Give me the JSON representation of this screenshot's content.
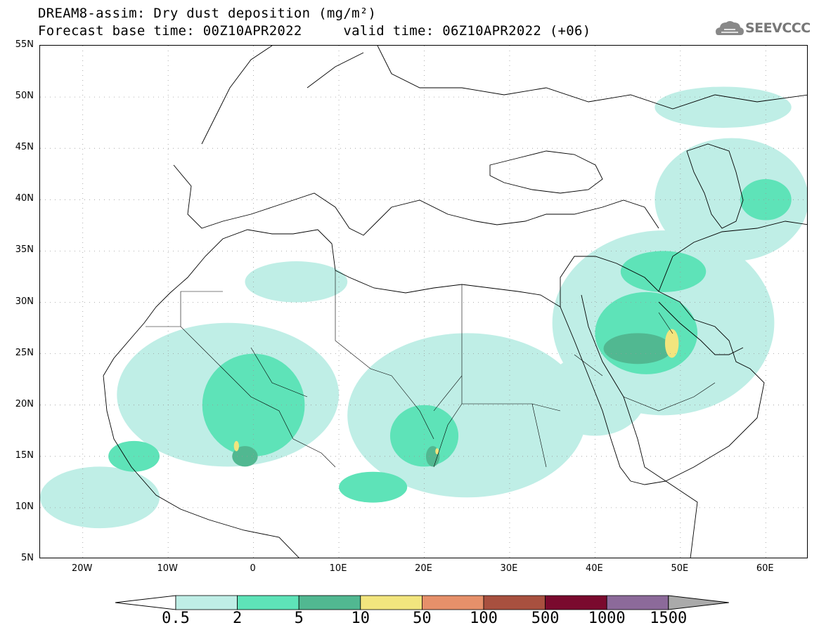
{
  "title": {
    "line1": "DREAM8-assim: Dry dust deposition (mg/m²)",
    "line2": "Forecast base time: 00Z10APR2022     valid time: 06Z10APR2022 (+06)"
  },
  "logo": {
    "text": "SEEVCCC",
    "icon": "cloud-icon"
  },
  "map": {
    "lat_labels": [
      "55N",
      "50N",
      "45N",
      "40N",
      "35N",
      "30N",
      "25N",
      "20N",
      "15N",
      "10N",
      "5N"
    ],
    "lon_labels": [
      "20W",
      "10W",
      "0",
      "10E",
      "20E",
      "30E",
      "40E",
      "50E",
      "60E"
    ],
    "lat_range": [
      5,
      55
    ],
    "lon_range": [
      -25,
      65
    ],
    "grid": true
  },
  "legend": {
    "levels": [
      "0.5",
      "2",
      "5",
      "10",
      "50",
      "100",
      "500",
      "1000",
      "1500"
    ],
    "colors": [
      "#bfeee6",
      "#5ee3b8",
      "#51b891",
      "#f2e57e",
      "#e6906a",
      "#a8503f",
      "#7a0a2e",
      "#8c6a9a"
    ],
    "under_color": "#ffffff",
    "over_color": "#aaaaaa"
  },
  "dust_regions": [
    {
      "level": 0,
      "lon": -3,
      "lat": 21,
      "rlon": 13,
      "rlat": 7
    },
    {
      "level": 0,
      "lon": 25,
      "lat": 19,
      "rlon": 14,
      "rlat": 8
    },
    {
      "level": 0,
      "lon": 48,
      "lat": 28,
      "rlon": 13,
      "rlat": 9
    },
    {
      "level": 0,
      "lon": 56,
      "lat": 40,
      "rlon": 9,
      "rlat": 6
    },
    {
      "level": 0,
      "lon": -18,
      "lat": 11,
      "rlon": 7,
      "rlat": 3
    },
    {
      "level": 0,
      "lon": 55,
      "lat": 49,
      "rlon": 8,
      "rlat": 2
    },
    {
      "level": 0,
      "lon": 5,
      "lat": 32,
      "rlon": 6,
      "rlat": 2
    },
    {
      "level": 0,
      "lon": 40,
      "lat": 21,
      "rlon": 6,
      "rlat": 4
    },
    {
      "level": 1,
      "lon": 0,
      "lat": 20,
      "rlon": 6,
      "rlat": 5
    },
    {
      "level": 1,
      "lon": -14,
      "lat": 15,
      "rlon": 3,
      "rlat": 1.5
    },
    {
      "level": 1,
      "lon": 20,
      "lat": 17,
      "rlon": 4,
      "rlat": 3
    },
    {
      "level": 1,
      "lon": 46,
      "lat": 27,
      "rlon": 6,
      "rlat": 4
    },
    {
      "level": 1,
      "lon": 48,
      "lat": 33,
      "rlon": 5,
      "rlat": 2
    },
    {
      "level": 1,
      "lon": 60,
      "lat": 40,
      "rlon": 3,
      "rlat": 2
    },
    {
      "level": 1,
      "lon": 14,
      "lat": 12,
      "rlon": 4,
      "rlat": 1.5
    },
    {
      "level": 2,
      "lon": 45,
      "lat": 25.5,
      "rlon": 4,
      "rlat": 1.5
    },
    {
      "level": 2,
      "lon": -1,
      "lat": 15,
      "rlon": 1.5,
      "rlat": 1
    },
    {
      "level": 2,
      "lon": 21,
      "lat": 15,
      "rlon": 0.8,
      "rlat": 1
    },
    {
      "level": 3,
      "lon": 49,
      "lat": 26,
      "rlon": 0.8,
      "rlat": 1.4
    },
    {
      "level": 3,
      "lon": -2,
      "lat": 16,
      "rlon": 0.3,
      "rlat": 0.5
    },
    {
      "level": 3,
      "lon": 21.5,
      "lat": 15.5,
      "rlon": 0.2,
      "rlat": 0.3
    }
  ]
}
